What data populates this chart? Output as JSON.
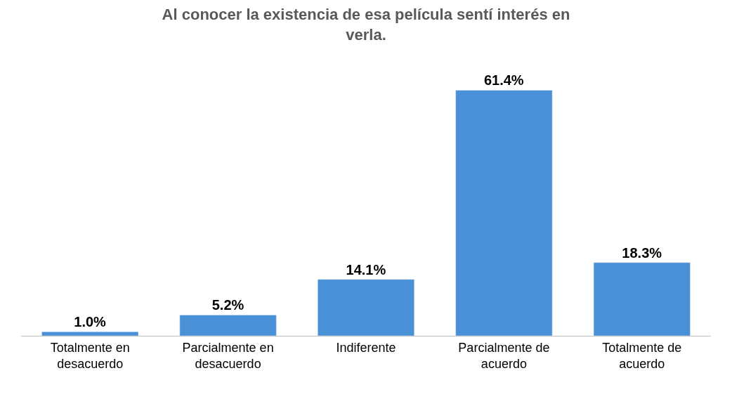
{
  "chart_data": {
    "type": "bar",
    "title": "Al conocer la existencia de esa película sentí interés en verla.",
    "categories": [
      "Totalmente en desacuerdo",
      "Parcialmente en desacuerdo",
      "Indiferente",
      "Parcialmente de acuerdo",
      "Totalmente de acuerdo"
    ],
    "values": [
      1.0,
      5.2,
      14.1,
      61.4,
      18.3
    ],
    "value_labels": [
      "1.0%",
      "5.2%",
      "14.1%",
      "61.4%",
      "18.3%"
    ],
    "color": "#4a90d6"
  }
}
